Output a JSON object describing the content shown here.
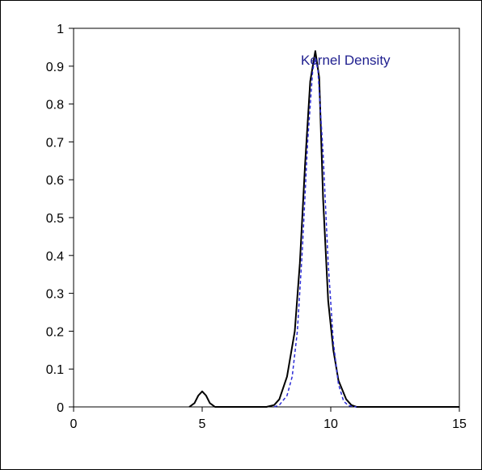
{
  "chart_data": {
    "type": "line",
    "title": "",
    "xlabel": "",
    "ylabel": "",
    "xlim": [
      0,
      15
    ],
    "ylim": [
      0,
      1
    ],
    "xticks": [
      "0",
      "5",
      "10",
      "15"
    ],
    "yticks": [
      "0",
      "0.1",
      "0.2",
      "0.3",
      "0.4",
      "0.5",
      "0.6",
      "0.7",
      "0.8",
      "0.9",
      "1"
    ],
    "grid": false,
    "legend": "none",
    "annotation": "Kernel Density",
    "series": [
      {
        "style": "solid",
        "color": "#000000",
        "x": [
          4.5,
          4.7,
          4.85,
          5.0,
          5.15,
          5.3,
          5.5,
          7.5,
          7.8,
          8.0,
          8.3,
          8.6,
          8.8,
          9.0,
          9.2,
          9.4,
          9.55,
          9.7,
          9.9,
          10.1,
          10.3,
          10.6,
          10.8,
          11.0,
          15.0
        ],
        "y": [
          0.0,
          0.01,
          0.03,
          0.041,
          0.03,
          0.01,
          0.0,
          0.0,
          0.005,
          0.02,
          0.08,
          0.2,
          0.38,
          0.64,
          0.86,
          0.94,
          0.87,
          0.55,
          0.28,
          0.15,
          0.07,
          0.02,
          0.005,
          0.0,
          0.0
        ]
      },
      {
        "style": "dashed",
        "color": "#2b2bd6",
        "x": [
          7.8,
          8.0,
          8.3,
          8.5,
          8.7,
          8.9,
          9.1,
          9.3,
          9.4,
          9.5,
          9.7,
          9.9,
          10.1,
          10.3,
          10.5,
          10.7,
          11.0
        ],
        "y": [
          0.0,
          0.005,
          0.03,
          0.08,
          0.2,
          0.42,
          0.7,
          0.89,
          0.92,
          0.89,
          0.67,
          0.38,
          0.17,
          0.06,
          0.015,
          0.003,
          0.0
        ]
      }
    ]
  }
}
